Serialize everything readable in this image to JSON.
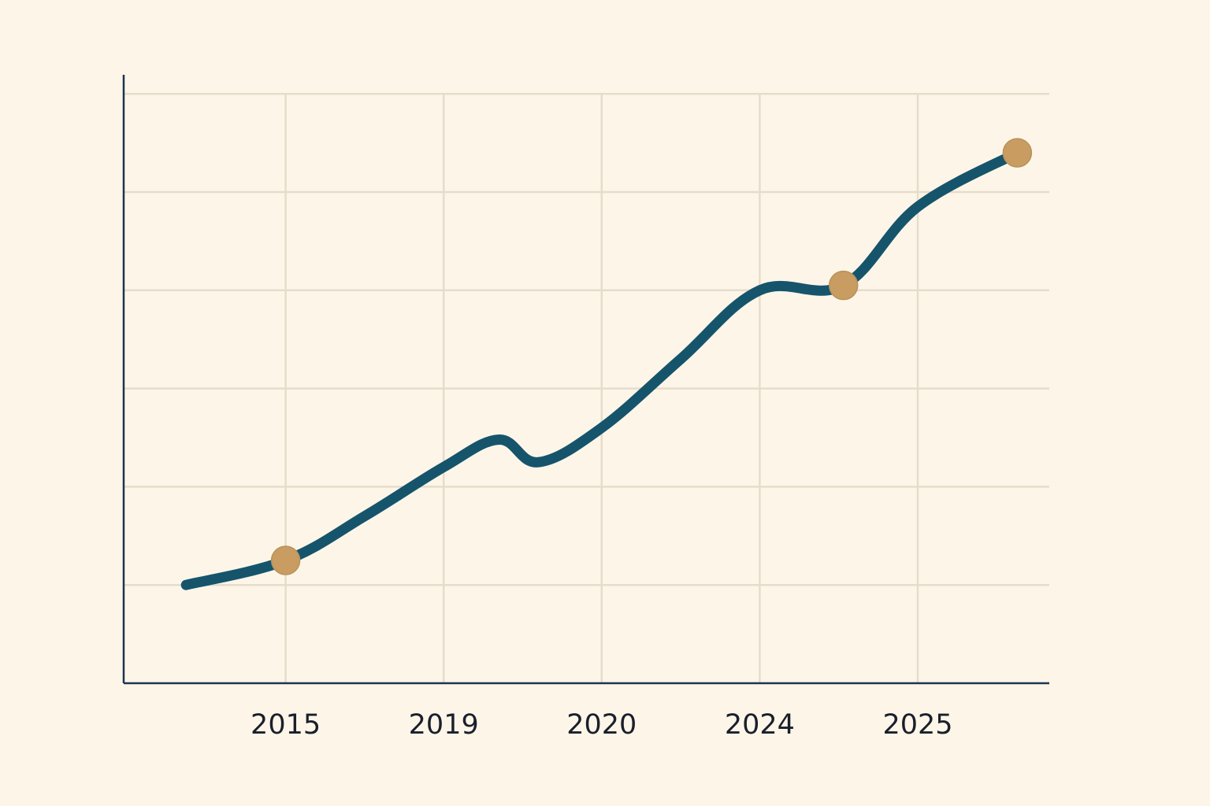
{
  "colors": {
    "background": "#fdf6e8",
    "grid": "#e6dccb",
    "axis": "#1c3450",
    "line": "#16546c",
    "marker": "#c99c62",
    "text": "#1a1f2b"
  },
  "chart_data": {
    "type": "line",
    "title": "",
    "xlabel": "",
    "ylabel": "",
    "x_ticks": [
      "2015",
      "2019",
      "2020",
      "2024",
      "2025"
    ],
    "x_tick_positions": [
      1,
      2,
      3,
      4,
      5
    ],
    "xlim": [
      0,
      6
    ],
    "ylim": [
      0,
      6
    ],
    "y_ticks_unlabeled": [
      1,
      2,
      3,
      4,
      5,
      6
    ],
    "grid": true,
    "legend": "none",
    "series": [
      {
        "x": [
          0.37,
          1.0,
          1.5,
          2.0,
          2.35,
          2.6,
          3.0,
          3.5,
          4.0,
          4.53,
          5.0,
          5.63
        ],
        "y": [
          1.0,
          1.25,
          1.7,
          2.2,
          2.48,
          2.25,
          2.6,
          3.3,
          4.0,
          4.05,
          4.85,
          5.4
        ]
      }
    ],
    "markers": {
      "x": [
        1.0,
        4.53,
        5.63
      ],
      "y": [
        1.25,
        4.05,
        5.4
      ]
    }
  }
}
